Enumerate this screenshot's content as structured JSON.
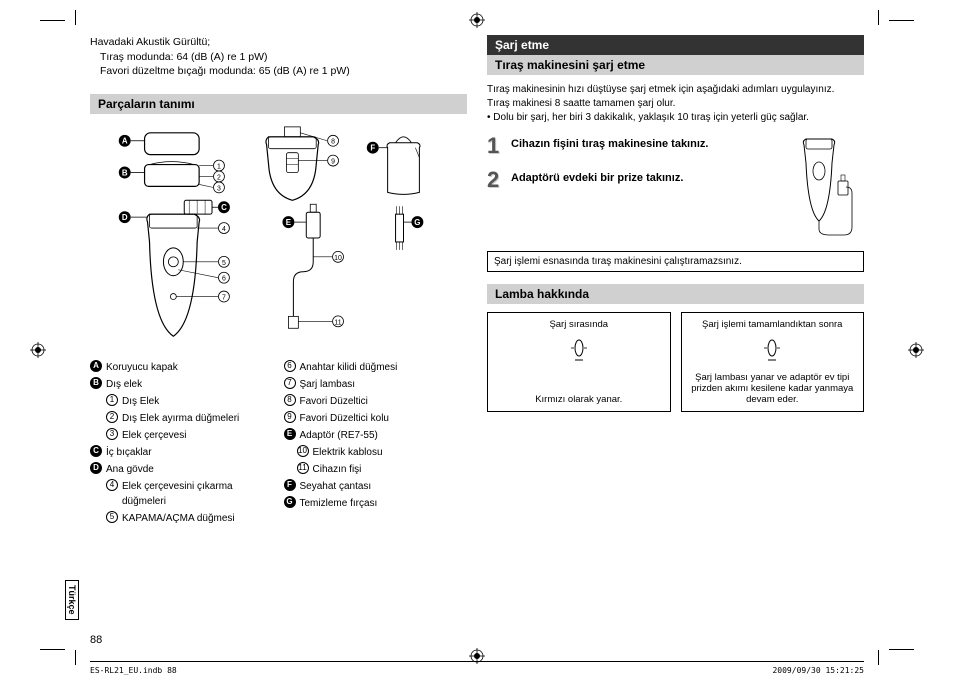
{
  "intro": {
    "line1": "Havadaki Akustik Gürültü;",
    "line2": "Tıraş modunda: 64 (dB (A) re 1 pW)",
    "line3": "Favori düzeltme bıçağı modunda: 65 (dB (A) re 1 pW)"
  },
  "sections": {
    "parts": "Parçaların tanımı",
    "charging": "Şarj etme",
    "charging_sub": "Tıraş makinesini şarj etme",
    "lamp": "Lamba hakkında"
  },
  "parts_left": [
    {
      "badge": "A",
      "type": "letter",
      "label": "Koruyucu kapak"
    },
    {
      "badge": "B",
      "type": "letter",
      "label": "Dış elek"
    },
    {
      "badge": "1",
      "type": "num",
      "label": "Dış Elek",
      "indent": true
    },
    {
      "badge": "2",
      "type": "num",
      "label": "Dış Elek ayırma düğmeleri",
      "indent": true
    },
    {
      "badge": "3",
      "type": "num",
      "label": "Elek çerçevesi",
      "indent": true
    },
    {
      "badge": "C",
      "type": "letter",
      "label": "İç bıçaklar"
    },
    {
      "badge": "D",
      "type": "letter",
      "label": "Ana gövde"
    },
    {
      "badge": "4",
      "type": "num",
      "label": "Elek çerçevesini çıkarma düğmeleri",
      "indent": true
    },
    {
      "badge": "5",
      "type": "num",
      "label": "KAPAMA/AÇMA düğmesi",
      "indent": true
    }
  ],
  "parts_right": [
    {
      "badge": "6",
      "type": "num",
      "label": "Anahtar kilidi düğmesi"
    },
    {
      "badge": "7",
      "type": "num",
      "label": "Şarj lambası"
    },
    {
      "badge": "8",
      "type": "num",
      "label": "Favori Düzeltici"
    },
    {
      "badge": "9",
      "type": "num",
      "label": "Favori Düzeltici kolu"
    },
    {
      "badge": "E",
      "type": "letter",
      "label": "Adaptör (RE7-55)"
    },
    {
      "badge": "10",
      "type": "num",
      "label": "Elektrik kablosu",
      "indent": true
    },
    {
      "badge": "11",
      "type": "num",
      "label": "Cihazın fişi",
      "indent": true
    },
    {
      "badge": "F",
      "type": "letter",
      "label": "Seyahat çantası"
    },
    {
      "badge": "G",
      "type": "letter",
      "label": "Temizleme fırçası"
    }
  ],
  "charge": {
    "intro1": "Tıraş makinesinin hızı düştüyse şarj etmek için aşağıdaki adımları uygulayınız.",
    "intro2": "Tıraş makinesi 8 saatte tamamen şarj olur.",
    "intro3": "• Dolu bir şarj, her biri 3 dakikalık, yaklaşık 10 tıraş için yeterli güç sağlar.",
    "step1": "Cihazın fişini tıraş makinesine takınız.",
    "step2": "Adaptörü evdeki bir prize takınız.",
    "note": "Şarj işlemi esnasında tıraş makinesini çalıştıramazsınız."
  },
  "lamp": {
    "box1_title": "Şarj sırasında",
    "box1_text": "Kırmızı olarak yanar.",
    "box2_title": "Şarj işlemi tamamlandıktan sonra",
    "box2_text": "Şarj lambası yanar ve adaptör ev tipi prizden akımı kesilene kadar yanmaya devam eder."
  },
  "lang_tab": "Türkçe",
  "page_num": "88",
  "footer": {
    "left": "ES-RL21_EU.indb   88",
    "right": "2009/09/30   15:21:25"
  },
  "colors": {
    "header_bg": "#d0d0d0",
    "dark_bg": "#333333"
  }
}
